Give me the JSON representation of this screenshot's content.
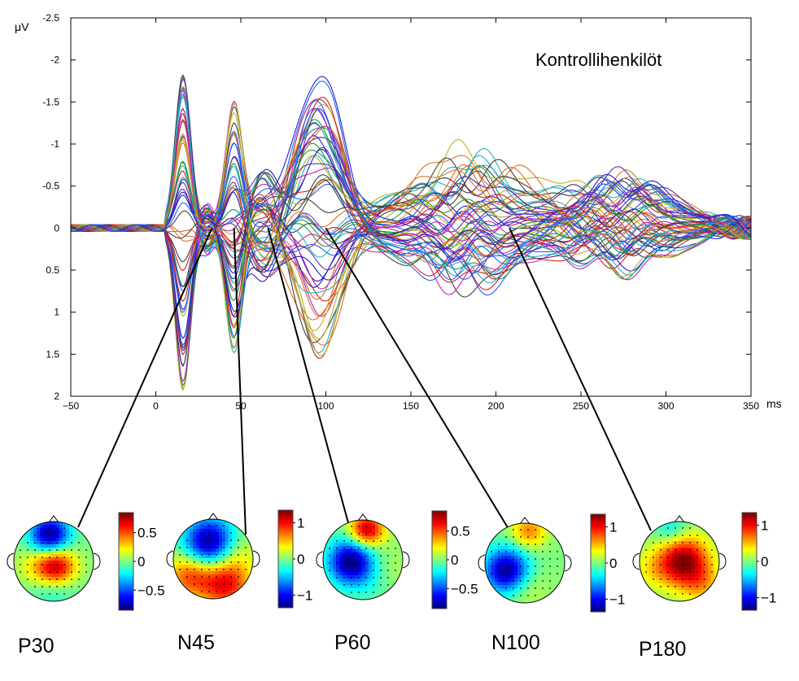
{
  "chart_data": {
    "type": "line",
    "title": "Kontrollihenkilöt",
    "ylabel": "μV",
    "xlabel": "ms",
    "xlim": [
      -50,
      350
    ],
    "ylim": [
      -2.5,
      2
    ],
    "y_inverted": true,
    "xticks": [
      -50,
      0,
      50,
      100,
      150,
      200,
      250,
      300,
      350
    ],
    "yticks": [
      -2.5,
      -2,
      -1.5,
      -1,
      -0.5,
      0,
      0.5,
      1,
      1.5,
      2
    ],
    "ytick_labels": [
      "-2.5",
      "-2",
      "-1.5",
      "-1",
      "-0.5",
      "0",
      "0.5",
      "1",
      "1.5",
      "2"
    ],
    "series_count": 60,
    "components": [
      {
        "name": "P30",
        "latency_ms": 33,
        "level_uv": 0.0,
        "colorbar_ticks": [
          0.5,
          0,
          -0.5
        ],
        "colorbar_labels": [
          "0.5",
          "0",
          "−0.5"
        ]
      },
      {
        "name": "N45",
        "latency_ms": 46,
        "level_uv": 0.0,
        "colorbar_ticks": [
          1,
          0,
          -1
        ],
        "colorbar_labels": [
          "1",
          "0",
          "−1"
        ]
      },
      {
        "name": "P60",
        "latency_ms": 66,
        "level_uv": 0.0,
        "colorbar_ticks": [
          0.5,
          0,
          -0.5
        ],
        "colorbar_labels": [
          "0.5",
          "0",
          "−0.5"
        ]
      },
      {
        "name": "N100",
        "latency_ms": 100,
        "level_uv": 0.0,
        "colorbar_ticks": [
          1,
          0,
          -1
        ],
        "colorbar_labels": [
          "1",
          "0",
          "−1"
        ]
      },
      {
        "name": "P180",
        "latency_ms": 208,
        "level_uv": 0.0,
        "colorbar_ticks": [
          1,
          0,
          -1
        ],
        "colorbar_labels": [
          "1",
          "0",
          "−1"
        ]
      }
    ]
  },
  "colors": {
    "traces": [
      "#1f1fd0",
      "#d01f1f",
      "#1a9a3a",
      "#c020c0",
      "#20b0c0",
      "#c0b020",
      "#404040",
      "#e07020",
      "#6030a0",
      "#2060ff"
    ]
  }
}
